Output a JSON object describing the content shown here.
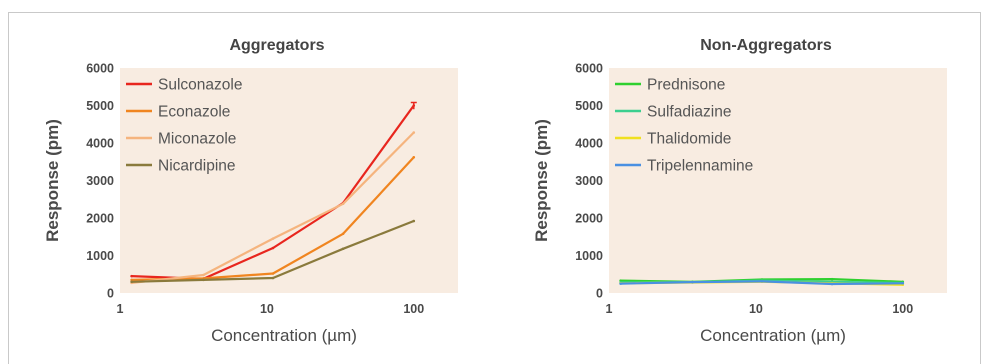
{
  "chart_data": [
    {
      "type": "line",
      "title": "Aggregators",
      "xlabel": "Concentration (µm)",
      "ylabel": "Response (pm)",
      "x_scale": "log",
      "xlim": [
        1,
        200
      ],
      "ylim": [
        0,
        6000
      ],
      "x_ticks": [
        "1",
        "10",
        "100"
      ],
      "y_ticks": [
        "0",
        "1000",
        "2000",
        "3000",
        "4000",
        "5000",
        "6000"
      ],
      "grid": false,
      "background": "#f8ece1",
      "legend_position": "top-left",
      "series": [
        {
          "name": "Sulconazole",
          "color": "#e8261e",
          "x": [
            1.2,
            3.7,
            11,
            33,
            100
          ],
          "y": [
            450,
            380,
            1200,
            2400,
            5000
          ]
        },
        {
          "name": "Econazole",
          "color": "#f08520",
          "x": [
            1.2,
            3.7,
            11,
            33,
            100
          ],
          "y": [
            350,
            390,
            520,
            1580,
            3620
          ]
        },
        {
          "name": "Miconazole",
          "color": "#f5b47e",
          "x": [
            1.2,
            3.7,
            11,
            33,
            100
          ],
          "y": [
            270,
            480,
            1450,
            2380,
            4280
          ]
        },
        {
          "name": "Nicardipine",
          "color": "#8a7a3c",
          "x": [
            1.2,
            3.7,
            11,
            33,
            100
          ],
          "y": [
            300,
            350,
            400,
            1180,
            1920
          ]
        }
      ]
    },
    {
      "type": "line",
      "title": "Non-Aggregators",
      "xlabel": "Concentration (µm)",
      "ylabel": "Response (pm)",
      "x_scale": "log",
      "xlim": [
        1,
        200
      ],
      "ylim": [
        0,
        6000
      ],
      "x_ticks": [
        "1",
        "10",
        "100"
      ],
      "y_ticks": [
        "0",
        "1000",
        "2000",
        "3000",
        "4000",
        "5000",
        "6000"
      ],
      "grid": false,
      "background": "#f8ece1",
      "legend_position": "top-left",
      "series": [
        {
          "name": "Prednisone",
          "color": "#2fd02f",
          "x": [
            1.2,
            3.7,
            11,
            33,
            100
          ],
          "y": [
            330,
            300,
            360,
            370,
            300
          ]
        },
        {
          "name": "Sulfadiazine",
          "color": "#3ccf8f",
          "x": [
            1.2,
            3.7,
            11,
            33,
            100
          ],
          "y": [
            280,
            290,
            330,
            300,
            270
          ]
        },
        {
          "name": "Thalidomide",
          "color": "#f0e020",
          "x": [
            1.2,
            3.7,
            11,
            33,
            100
          ],
          "y": [
            260,
            280,
            300,
            260,
            220
          ]
        },
        {
          "name": "Tripelennamine",
          "color": "#4a90e2",
          "x": [
            1.2,
            3.7,
            11,
            33,
            100
          ],
          "y": [
            250,
            290,
            310,
            240,
            260
          ]
        }
      ]
    }
  ]
}
